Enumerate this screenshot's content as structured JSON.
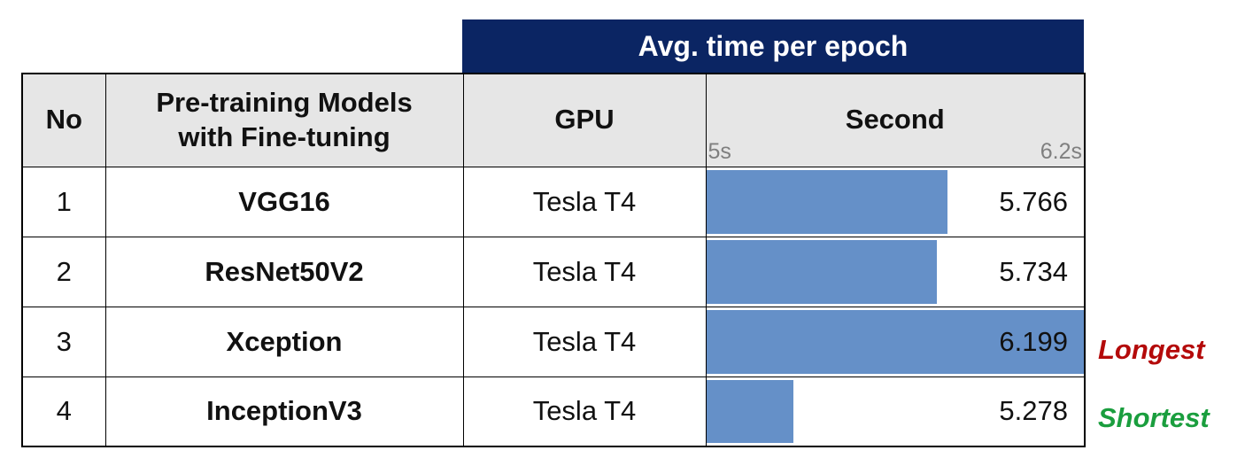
{
  "group_header": "Avg. time per epoch",
  "headers": {
    "no": "No",
    "model_line1": "Pre-training Models",
    "model_line2": "with Fine-tuning",
    "gpu": "GPU",
    "second": "Second"
  },
  "axis": {
    "min_label": "5s",
    "max_label": "6.2s",
    "min": 5,
    "max": 6.2
  },
  "rows": [
    {
      "no": "1",
      "model": "VGG16",
      "gpu": "Tesla T4",
      "value": 5.766,
      "value_label": "5.766"
    },
    {
      "no": "2",
      "model": "ResNet50V2",
      "gpu": "Tesla T4",
      "value": 5.734,
      "value_label": "5.734"
    },
    {
      "no": "3",
      "model": "Xception",
      "gpu": "Tesla T4",
      "value": 6.199,
      "value_label": "6.199"
    },
    {
      "no": "4",
      "model": "InceptionV3",
      "gpu": "Tesla T4",
      "value": 5.278,
      "value_label": "5.278"
    }
  ],
  "annotations": {
    "longest": "Longest",
    "shortest": "Shortest"
  },
  "colors": {
    "header_bg": "#0b2563",
    "subheader_bg": "#e6e6e6",
    "bar": "#6590c8",
    "longest": "#b40a0a",
    "shortest": "#1a9e3e"
  }
}
